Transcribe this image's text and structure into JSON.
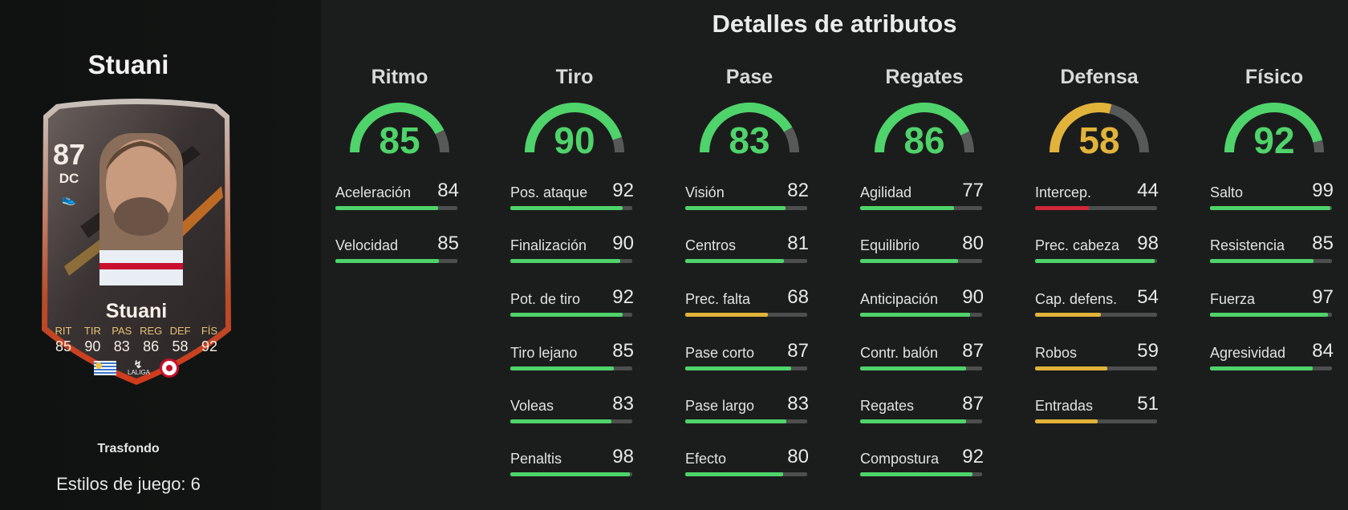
{
  "player": {
    "name": "Stuani",
    "card": {
      "rating": "87",
      "position": "DC",
      "name": "Stuani",
      "stat_labels": [
        "RIT",
        "TIR",
        "PAS",
        "REG",
        "DEF",
        "FÍS"
      ],
      "stat_values": [
        "85",
        "90",
        "83",
        "86",
        "58",
        "92"
      ],
      "league": "LALIGA"
    },
    "trasfondo_label": "Trasfondo",
    "playstyles_text": "Estilos de juego: 6"
  },
  "page_title": "Detalles de atributos",
  "colors": {
    "green": "#4fd36b",
    "yellow": "#e2b33a",
    "red": "#d3273a",
    "track": "#4c4f4d",
    "gauge_track": "#565957"
  },
  "categories": [
    {
      "name": "Ritmo",
      "value": "85",
      "color": "green",
      "attributes": [
        {
          "label": "Aceleración",
          "value": "84",
          "color": "green"
        },
        {
          "label": "Velocidad",
          "value": "85",
          "color": "green"
        }
      ]
    },
    {
      "name": "Tiro",
      "value": "90",
      "color": "green",
      "attributes": [
        {
          "label": "Pos. ataque",
          "value": "92",
          "color": "green"
        },
        {
          "label": "Finalización",
          "value": "90",
          "color": "green"
        },
        {
          "label": "Pot. de tiro",
          "value": "92",
          "color": "green"
        },
        {
          "label": "Tiro lejano",
          "value": "85",
          "color": "green"
        },
        {
          "label": "Voleas",
          "value": "83",
          "color": "green"
        },
        {
          "label": "Penaltis",
          "value": "98",
          "color": "green"
        }
      ]
    },
    {
      "name": "Pase",
      "value": "83",
      "color": "green",
      "attributes": [
        {
          "label": "Visión",
          "value": "82",
          "color": "green"
        },
        {
          "label": "Centros",
          "value": "81",
          "color": "green"
        },
        {
          "label": "Prec. falta",
          "value": "68",
          "color": "yellow"
        },
        {
          "label": "Pase corto",
          "value": "87",
          "color": "green"
        },
        {
          "label": "Pase largo",
          "value": "83",
          "color": "green"
        },
        {
          "label": "Efecto",
          "value": "80",
          "color": "green"
        }
      ]
    },
    {
      "name": "Regates",
      "value": "86",
      "color": "green",
      "attributes": [
        {
          "label": "Agilidad",
          "value": "77",
          "color": "green"
        },
        {
          "label": "Equilibrio",
          "value": "80",
          "color": "green"
        },
        {
          "label": "Anticipación",
          "value": "90",
          "color": "green"
        },
        {
          "label": "Contr. balón",
          "value": "87",
          "color": "green"
        },
        {
          "label": "Regates",
          "value": "87",
          "color": "green"
        },
        {
          "label": "Compostura",
          "value": "92",
          "color": "green"
        }
      ]
    },
    {
      "name": "Defensa",
      "value": "58",
      "color": "yellow",
      "attributes": [
        {
          "label": "Intercep.",
          "value": "44",
          "color": "red"
        },
        {
          "label": "Prec. cabeza",
          "value": "98",
          "color": "green"
        },
        {
          "label": "Cap. defens.",
          "value": "54",
          "color": "yellow"
        },
        {
          "label": "Robos",
          "value": "59",
          "color": "yellow"
        },
        {
          "label": "Entradas",
          "value": "51",
          "color": "yellow"
        }
      ]
    },
    {
      "name": "Físico",
      "value": "92",
      "color": "green",
      "attributes": [
        {
          "label": "Salto",
          "value": "99",
          "color": "green"
        },
        {
          "label": "Resistencia",
          "value": "85",
          "color": "green"
        },
        {
          "label": "Fuerza",
          "value": "97",
          "color": "green"
        },
        {
          "label": "Agresividad",
          "value": "84",
          "color": "green"
        }
      ]
    }
  ]
}
